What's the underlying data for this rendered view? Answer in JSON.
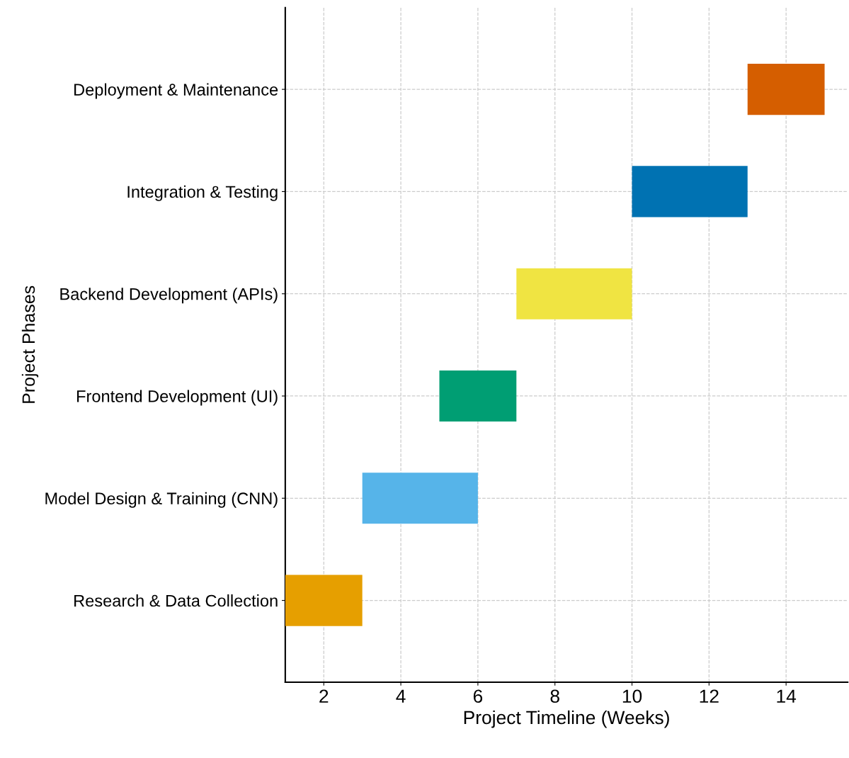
{
  "chart_data": {
    "type": "bar",
    "orientation": "horizontal",
    "xlabel": "Project Timeline (Weeks)",
    "ylabel": "Project Phases",
    "categories": [
      "Deployment & Maintenance",
      "Integration & Testing",
      "Backend Development (APIs)",
      "Frontend Development (UI)",
      "Model Design & Training (CNN)",
      "Research & Data Collection"
    ],
    "base": [
      13,
      10,
      7,
      5,
      3,
      1
    ],
    "values": [
      2,
      3,
      3,
      2,
      3,
      2
    ],
    "colors": [
      "#d55e00",
      "#0072b2",
      "#f0e442",
      "#009e73",
      "#56b4e9",
      "#e69f00"
    ],
    "xlim": [
      1,
      15.6
    ],
    "xticks": [
      2,
      4,
      6,
      8,
      10,
      12,
      14
    ],
    "grid": true
  }
}
